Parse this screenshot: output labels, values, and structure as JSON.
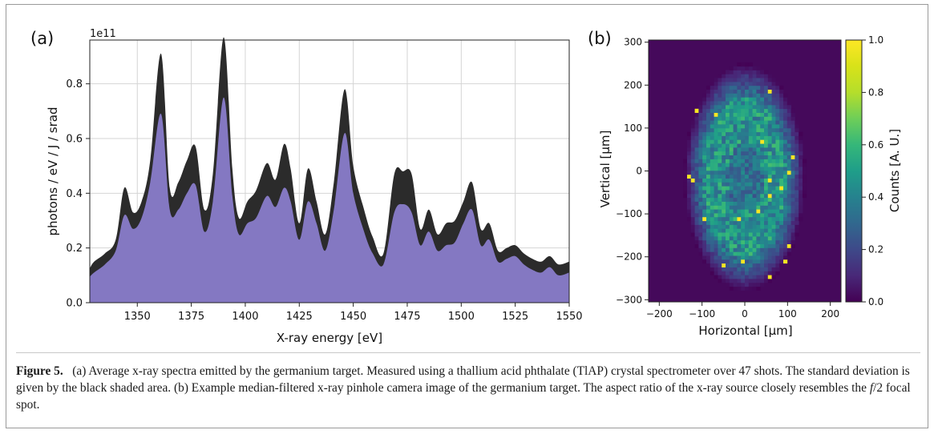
{
  "figure": {
    "panel_a_label": "(a)",
    "panel_b_label": "(b)",
    "caption_label": "Figure 5.",
    "caption_text_1": "(a) Average x-ray spectra emitted by the germanium target. Measured using a thallium acid phthalate (TlAP) crystal spectrometer over 47 shots. The standard deviation is given by the black shaded area. (b) Example median-filtered x-ray pinhole camera image of the germanium target. The aspect ratio of the x-ray source closely resembles the ",
    "caption_italic": "f",
    "caption_text_2": "/2 focal spot."
  },
  "chart_data": [
    {
      "type": "area",
      "title": "",
      "xlabel": "X-ray energy [eV]",
      "ylabel": "photons / eV / J / srad",
      "y_multiplier_label": "1e11",
      "xlim": [
        1328,
        1550
      ],
      "ylim": [
        0,
        0.96
      ],
      "grid": true,
      "x_ticks": [
        1350,
        1375,
        1400,
        1425,
        1450,
        1475,
        1500,
        1525,
        1550
      ],
      "y_ticks": [
        0.0,
        0.2,
        0.4,
        0.6,
        0.8
      ],
      "x_tick_labels": [
        "1350",
        "1375",
        "1400",
        "1425",
        "1450",
        "1475",
        "1500",
        "1525",
        "1550"
      ],
      "y_tick_labels": [
        "0.0",
        "0.2",
        "0.4",
        "0.6",
        "0.8"
      ],
      "fill_color": "#8478c2",
      "band_color": "#2b2b2b",
      "series": [
        {
          "x": [
            1328,
            1330,
            1335,
            1340,
            1344,
            1348,
            1352,
            1356,
            1361,
            1365,
            1369,
            1373,
            1377,
            1381,
            1385,
            1390,
            1394,
            1397,
            1401,
            1405,
            1410,
            1414,
            1418,
            1421,
            1425,
            1429,
            1433,
            1437,
            1441,
            1446,
            1450,
            1455,
            1459,
            1464,
            1469,
            1473,
            1477,
            1481,
            1485,
            1489,
            1493,
            1497,
            1501,
            1505,
            1509,
            1513,
            1517,
            1521,
            1525,
            1529,
            1533,
            1537,
            1541,
            1545,
            1550
          ],
          "mean": [
            0.11,
            0.13,
            0.16,
            0.21,
            0.37,
            0.3,
            0.34,
            0.48,
            0.8,
            0.38,
            0.39,
            0.46,
            0.5,
            0.3,
            0.42,
            0.86,
            0.44,
            0.28,
            0.33,
            0.36,
            0.45,
            0.4,
            0.5,
            0.43,
            0.26,
            0.43,
            0.33,
            0.22,
            0.39,
            0.7,
            0.45,
            0.3,
            0.21,
            0.16,
            0.4,
            0.42,
            0.4,
            0.24,
            0.3,
            0.22,
            0.25,
            0.26,
            0.33,
            0.39,
            0.24,
            0.26,
            0.17,
            0.18,
            0.19,
            0.16,
            0.14,
            0.13,
            0.15,
            0.12,
            0.13
          ],
          "std": [
            0.015,
            0.02,
            0.02,
            0.02,
            0.05,
            0.03,
            0.03,
            0.04,
            0.11,
            0.04,
            0.05,
            0.06,
            0.07,
            0.04,
            0.05,
            0.11,
            0.05,
            0.03,
            0.04,
            0.05,
            0.06,
            0.05,
            0.08,
            0.06,
            0.03,
            0.06,
            0.04,
            0.03,
            0.05,
            0.08,
            0.05,
            0.04,
            0.03,
            0.02,
            0.07,
            0.06,
            0.07,
            0.03,
            0.04,
            0.03,
            0.04,
            0.04,
            0.04,
            0.05,
            0.03,
            0.03,
            0.02,
            0.02,
            0.02,
            0.02,
            0.02,
            0.02,
            0.02,
            0.02,
            0.02
          ]
        }
      ]
    },
    {
      "type": "heatmap",
      "title": "",
      "xlabel": "Horizontal [μm]",
      "ylabel": "Vertical [μm]",
      "colorbar_label": "Counts [A. U.]",
      "xlim": [
        -225,
        225
      ],
      "ylim": [
        -305,
        305
      ],
      "x_ticks": [
        -200,
        -100,
        0,
        100,
        200
      ],
      "y_ticks": [
        300,
        200,
        100,
        0,
        -100,
        -200,
        -300
      ],
      "x_tick_labels": [
        "−200",
        "−100",
        "0",
        "100",
        "200"
      ],
      "y_tick_labels": [
        "300",
        "200",
        "100",
        "0",
        "−100",
        "−200",
        "−300"
      ],
      "colorbar_range": [
        0.0,
        1.0
      ],
      "colorbar_ticks": [
        1.0,
        0.8,
        0.6,
        0.4,
        0.2,
        0.0
      ],
      "colorbar_tick_labels": [
        "1.0",
        "0.8",
        "0.6",
        "0.4",
        "0.2",
        "0.0"
      ],
      "colormap": "viridis",
      "spot": {
        "center_x": 0,
        "center_y": -15,
        "half_width": 120,
        "half_height": 225,
        "peak_counts": 0.75
      }
    }
  ]
}
